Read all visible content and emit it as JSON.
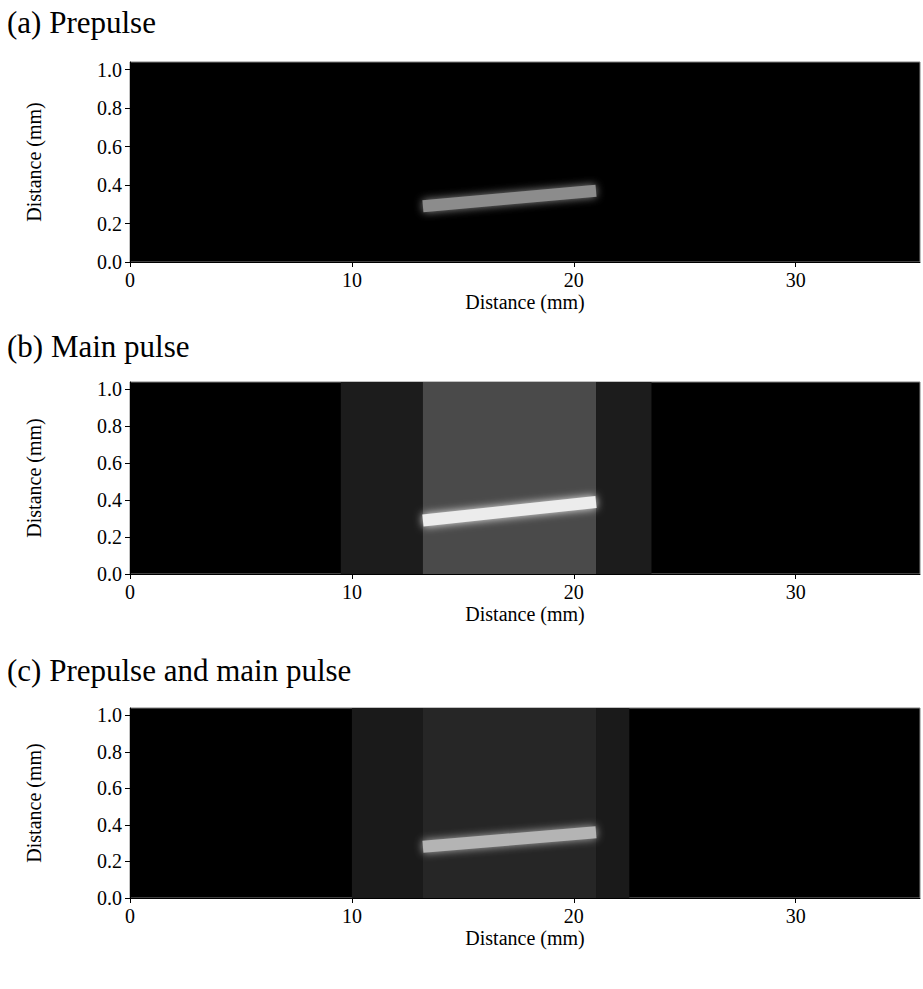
{
  "chart_data": [
    {
      "type": "image",
      "title": "(a) Prepulse",
      "xlabel": "Distance (mm)",
      "ylabel": "Distance (mm)",
      "xlim": [
        0,
        35.6
      ],
      "xticks": [
        0,
        10,
        20,
        30
      ],
      "ylim": [
        0,
        1.04
      ],
      "yticks": [
        {
          "value": 0,
          "label": "0.0"
        },
        0.2,
        0.4,
        0.6,
        0.8,
        {
          "value": 1,
          "label": "1.0"
        }
      ],
      "series": [
        {
          "type": "streak",
          "color": "#8c8c8c",
          "x": [
            13.2,
            21
          ],
          "values": [
            0.29,
            0.37
          ]
        }
      ]
    },
    {
      "type": "image",
      "title": "(b) Main pulse",
      "xlabel": "Distance (mm)",
      "ylabel": "Distance (mm)",
      "xlim": [
        0,
        35.6
      ],
      "xticks": [
        0,
        10,
        20,
        30
      ],
      "ylim": [
        0,
        1.04
      ],
      "yticks": [
        {
          "value": 0,
          "label": "0.0"
        },
        0.2,
        0.4,
        0.6,
        0.8,
        {
          "value": 1,
          "label": "1.0"
        }
      ],
      "series": [
        {
          "type": "band",
          "color": "#1c1c1c",
          "x": [
            9.5,
            23.5
          ],
          "values": [
            1.04,
            1.04
          ]
        },
        {
          "type": "band",
          "color": "#4a4a4a",
          "x": [
            13.2,
            21
          ],
          "values": [
            1.04,
            1.04
          ]
        },
        {
          "type": "streak",
          "color": "#ececec",
          "x": [
            13.2,
            21
          ],
          "values": [
            0.29,
            0.39
          ]
        }
      ]
    },
    {
      "type": "image",
      "title": "(c) Prepulse and main pulse",
      "xlabel": "Distance (mm)",
      "ylabel": "Distance (mm)",
      "xlim": [
        0,
        35.6
      ],
      "xticks": [
        0,
        10,
        20,
        30
      ],
      "ylim": [
        0,
        1.04
      ],
      "yticks": [
        {
          "value": 0,
          "label": "0.0"
        },
        0.2,
        0.4,
        0.6,
        0.8,
        {
          "value": 1,
          "label": "1.0"
        }
      ],
      "series": [
        {
          "type": "band",
          "color": "#1a1a1a",
          "x": [
            10,
            22.5
          ],
          "values": [
            1.04,
            1.04
          ]
        },
        {
          "type": "band",
          "color": "#262626",
          "x": [
            13.2,
            21
          ],
          "values": [
            1.04,
            1.04
          ]
        },
        {
          "type": "streak",
          "color": "#b4b4b4",
          "x": [
            13.2,
            21
          ],
          "values": [
            0.28,
            0.36
          ]
        }
      ]
    }
  ]
}
